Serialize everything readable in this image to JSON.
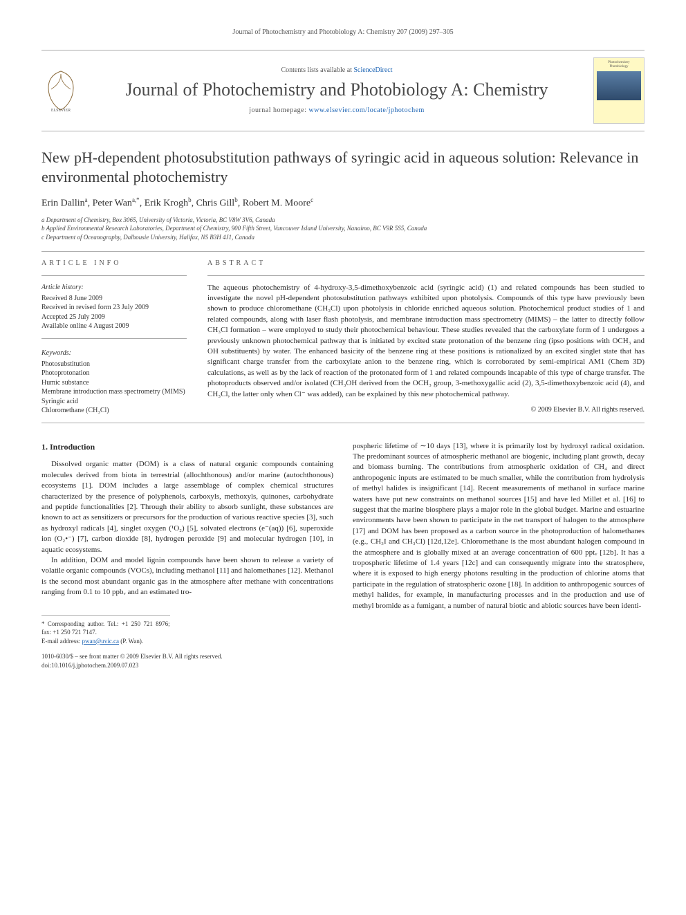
{
  "running_head": "Journal of Photochemistry and Photobiology A: Chemistry 207 (2009) 297–305",
  "masthead": {
    "contents_prefix": "Contents lists available at ",
    "contents_link": "ScienceDirect",
    "journal_title": "Journal of Photochemistry and Photobiology A: Chemistry",
    "homepage_prefix": "journal homepage: ",
    "homepage_url": "www.elsevier.com/locate/jphotochem",
    "publisher_label": "ELSEVIER",
    "cover_label_1": "Photochemistry",
    "cover_label_2": "Photobiology"
  },
  "article": {
    "title": "New pH-dependent photosubstitution pathways of syringic acid in aqueous solution: Relevance in environmental photochemistry",
    "authors_html": "Erin Dallin<sup>a</sup>, Peter Wan<sup>a,*</sup>, Erik Krogh<sup>b</sup>, Chris Gill<sup>b</sup>, Robert M. Moore<sup>c</sup>",
    "affiliations": [
      "a Department of Chemistry, Box 3065, University of Victoria, Victoria, BC V8W 3V6, Canada",
      "b Applied Environmental Research Laboratories, Department of Chemistry, 900 Fifth Street, Vancouver Island University, Nanaimo, BC V9R 5S5, Canada",
      "c Department of Oceanography, Dalhousie University, Halifax, NS B3H 4J1, Canada"
    ]
  },
  "info": {
    "section_label": "ARTICLE INFO",
    "history_label": "Article history:",
    "history": [
      "Received 8 June 2009",
      "Received in revised form 23 July 2009",
      "Accepted 25 July 2009",
      "Available online 4 August 2009"
    ],
    "keywords_label": "Keywords:",
    "keywords": [
      "Photosubstitution",
      "Photoprotonation",
      "Humic substance",
      "Membrane introduction mass spectrometry (MIMS)",
      "Syringic acid",
      "Chloromethane (CH₃Cl)"
    ]
  },
  "abstract": {
    "section_label": "ABSTRACT",
    "text": "The aqueous photochemistry of 4-hydroxy-3,5-dimethoxybenzoic acid (syringic acid) (1) and related compounds has been studied to investigate the novel pH-dependent photosubstitution pathways exhibited upon photolysis. Compounds of this type have previously been shown to produce chloromethane (CH₃Cl) upon photolysis in chloride enriched aqueous solution. Photochemical product studies of 1 and related compounds, along with laser flash photolysis, and membrane introduction mass spectrometry (MIMS) – the latter to directly follow CH₃Cl formation – were employed to study their photochemical behaviour. These studies revealed that the carboxylate form of 1 undergoes a previously unknown photochemical pathway that is initiated by excited state protonation of the benzene ring (ipso positions with OCH₃ and OH substituents) by water. The enhanced basicity of the benzene ring at these positions is rationalized by an excited singlet state that has significant charge transfer from the carboxylate anion to the benzene ring, which is corroborated by semi-empirical AM1 (Chem 3D) calculations, as well as by the lack of reaction of the protonated form of 1 and related compounds incapable of this type of charge transfer. The photoproducts observed and/or isolated (CH₃OH derived from the OCH₃ group, 3-methoxygallic acid (2), 3,5-dimethoxybenzoic acid (4), and CH₃Cl, the latter only when Cl⁻ was added), can be explained by this new photochemical pathway.",
    "copyright": "© 2009 Elsevier B.V. All rights reserved."
  },
  "body": {
    "section_number": "1.",
    "section_title": "Introduction",
    "col1_p1": "Dissolved organic matter (DOM) is a class of natural organic compounds containing molecules derived from biota in terrestrial (allochthonous) and/or marine (autochthonous) ecosystems [1]. DOM includes a large assemblage of complex chemical structures characterized by the presence of polyphenols, carboxyls, methoxyls, quinones, carbohydrate and peptide functionalities [2]. Through their ability to absorb sunlight, these substances are known to act as sensitizers or precursors for the production of various reactive species [3], such as hydroxyl radicals [4], singlet oxygen (¹O₂) [5], solvated electrons (e⁻(aq)) [6], superoxide ion (O₂•⁻) [7], carbon dioxide [8], hydrogen peroxide [9] and molecular hydrogen [10], in aquatic ecosystems.",
    "col1_p2": "In addition, DOM and model lignin compounds have been shown to release a variety of volatile organic compounds (VOCs), including methanol [11] and halomethanes [12]. Methanol is the second most abundant organic gas in the atmosphere after methane with concentrations ranging from 0.1 to 10 ppbᵥ and an estimated tro-",
    "col2_p1": "pospheric lifetime of ∼10 days [13], where it is primarily lost by hydroxyl radical oxidation. The predominant sources of atmospheric methanol are biogenic, including plant growth, decay and biomass burning. The contributions from atmospheric oxidation of CH₄ and direct anthropogenic inputs are estimated to be much smaller, while the contribution from hydrolysis of methyl halides is insignificant [14]. Recent measurements of methanol in surface marine waters have put new constraints on methanol sources [15] and have led Millet et al. [16] to suggest that the marine biosphere plays a major role in the global budget. Marine and estuarine environments have been shown to participate in the net transport of halogen to the atmosphere [17] and DOM has been proposed as a carbon source in the photoproduction of halomethanes (e.g., CH₃I and CH₃Cl) [12d,12e]. Chloromethane is the most abundant halogen compound in the atmosphere and is globally mixed at an average concentration of 600 pptᵥ [12b]. It has a tropospheric lifetime of 1.4 years [12c] and can consequently migrate into the stratosphere, where it is exposed to high energy photons resulting in the production of chlorine atoms that participate in the regulation of stratospheric ozone [18]. In addition to anthropogenic sources of methyl halides, for example, in manufacturing processes and in the production and use of methyl bromide as a fumigant, a number of natural biotic and abiotic sources have been identi-"
  },
  "footnotes": {
    "corr": "* Corresponding author. Tel.: +1 250 721 8976; fax: +1 250 721 7147.",
    "email_label": "E-mail address: ",
    "email": "pwan@uvic.ca",
    "email_who": " (P. Wan)."
  },
  "bottom": {
    "line1": "1010-6030/$ – see front matter © 2009 Elsevier B.V. All rights reserved.",
    "line2": "doi:10.1016/j.jphotochem.2009.07.023"
  },
  "colors": {
    "link": "#1a62b3",
    "rule": "#aaaaaa",
    "cover_bg": "#fff9c4",
    "cover_band_top": "#5b7fa6",
    "cover_band_bot": "#2e4a6b"
  }
}
